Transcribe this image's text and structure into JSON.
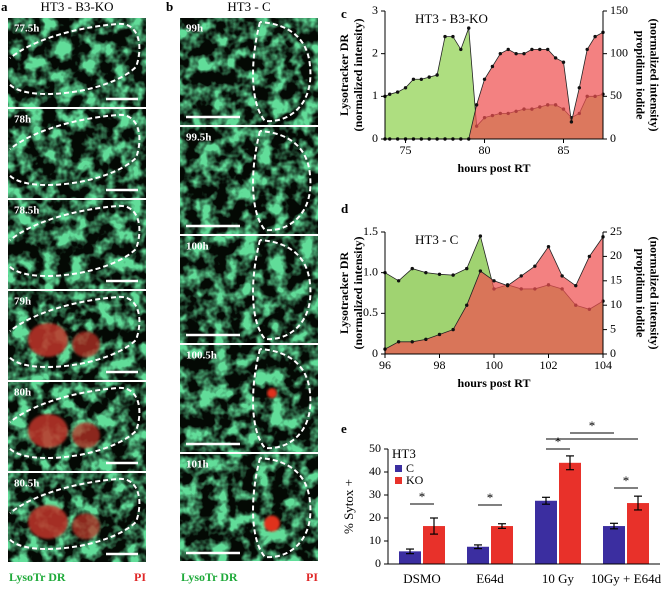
{
  "panel_labels": [
    "a",
    "b",
    "c",
    "d",
    "e"
  ],
  "micrographs": [
    {
      "title": "HT3 - B3-KO",
      "frames": [
        "77.5h",
        "78h",
        "78.5h",
        "79h",
        "80h",
        "80.5h"
      ],
      "channels": [
        "LysoTr DR",
        "PI"
      ]
    },
    {
      "title": "HT3 - C",
      "frames": [
        "99h",
        "99.5h",
        "100h",
        "100.5h",
        "101h"
      ],
      "channels": [
        "LysoTr DR",
        "PI"
      ]
    }
  ],
  "chart_data": [
    {
      "type": "area",
      "title": "HT3 - B3-KO",
      "xlabel": "hours post RT",
      "ylabel": [
        "Lysotracker  DR",
        "(normalized intensity)"
      ],
      "y2label": [
        "propidium iodide",
        "(normalized intensity)"
      ],
      "x": [
        73.7,
        74,
        74.5,
        75,
        75.5,
        76,
        76.5,
        77,
        77.5,
        78,
        78.5,
        79,
        79.5,
        80,
        80.5,
        81,
        81.5,
        82,
        82.5,
        83,
        83.5,
        84,
        84.5,
        85,
        85.5,
        86,
        86.5,
        87,
        87.5
      ],
      "series": [
        {
          "color": "#8fd14f",
          "values": [
            1.0,
            1.05,
            1.1,
            1.2,
            1.4,
            1.4,
            1.45,
            1.5,
            2.4,
            2.4,
            2.1,
            2.6,
            0.3,
            0.5,
            0.55,
            0.6,
            0.6,
            0.65,
            0.7,
            0.7,
            0.75,
            0.8,
            0.8,
            0.7,
            0.5,
            0.6,
            1.0,
            1.0,
            1.05
          ]
        },
        {
          "color": "#ef5050",
          "axis": "y2",
          "values": [
            0,
            0,
            0,
            0,
            0,
            0,
            0,
            0,
            0,
            0,
            0,
            0,
            40,
            70,
            85,
            100,
            105,
            100,
            100,
            105,
            105,
            105,
            95,
            90,
            20,
            60,
            105,
            120,
            125
          ]
        }
      ],
      "xlim": [
        73.7,
        87.5
      ],
      "xticks": [
        75,
        80,
        85
      ],
      "ylim": [
        0,
        3
      ],
      "yticks": [
        0,
        1,
        2,
        3
      ],
      "y2lim": [
        0,
        150
      ],
      "y2ticks": [
        0,
        50,
        100,
        150
      ]
    },
    {
      "type": "area",
      "title": "HT3 - C",
      "xlabel": "hours post RT",
      "ylabel": [
        "Lysotracker  DR",
        "(normalized intensity)"
      ],
      "y2label": [
        "propidium iodide",
        "(normalized intensity)"
      ],
      "x": [
        96,
        96.5,
        97,
        97.5,
        98,
        98.5,
        99,
        99.5,
        100,
        100.5,
        101,
        101.5,
        102,
        102.5,
        103,
        103.5,
        104
      ],
      "series": [
        {
          "color": "#7cc23a",
          "values": [
            1.0,
            0.9,
            1.05,
            1.0,
            0.98,
            0.97,
            1.05,
            1.45,
            0.8,
            0.85,
            0.8,
            0.8,
            0.85,
            0.8,
            0.6,
            0.55,
            0.65
          ]
        },
        {
          "color": "#ef5050",
          "axis": "y2",
          "values": [
            1,
            2.5,
            2.5,
            3,
            4,
            5,
            10,
            17,
            15,
            14,
            16,
            18,
            22,
            16,
            14,
            20,
            24
          ]
        }
      ],
      "xlim": [
        96,
        104
      ],
      "xticks": [
        96,
        98,
        100,
        102,
        104
      ],
      "ylim": [
        0,
        1.5
      ],
      "yticks": [
        0,
        0.5,
        {
          "value": 1,
          "label": "1.0"
        },
        1.5
      ],
      "y2lim": [
        0,
        25
      ],
      "y2ticks": [
        0,
        5,
        10,
        15,
        20,
        25
      ]
    },
    {
      "type": "bar",
      "ylabel": "% Sytox +",
      "legend_title": "HT3",
      "legend": "upper left",
      "categories": [
        "DSMO",
        "E64d",
        "10 Gy",
        "10Gy + E64d"
      ],
      "series": [
        {
          "name": "C",
          "color": "#3b2ea0",
          "values": [
            5.5,
            7.5,
            27.5,
            16.5
          ],
          "errors": [
            1,
            0.8,
            1.5,
            1.2
          ]
        },
        {
          "name": "KO",
          "color": "#e8312a",
          "values": [
            16.5,
            16.5,
            44,
            26.5
          ],
          "errors": [
            3.5,
            1,
            3,
            3
          ]
        }
      ],
      "ylim": [
        0,
        50
      ],
      "yticks": [
        0,
        10,
        20,
        30,
        40,
        50
      ],
      "annotations": [
        "*",
        "*",
        "*",
        "*",
        "*"
      ]
    }
  ]
}
